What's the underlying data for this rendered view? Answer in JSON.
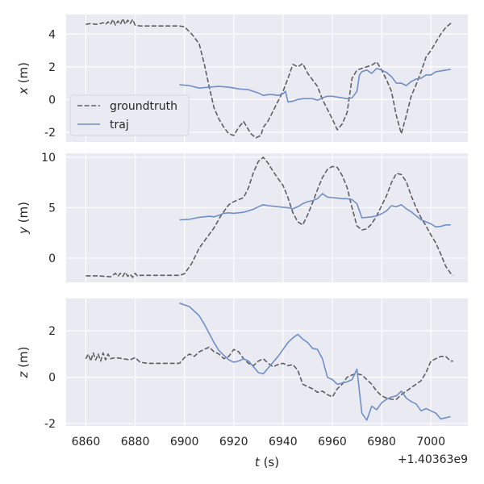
{
  "chart_data": [
    {
      "type": "line",
      "ylabel_var": "x",
      "ylabel_unit": " (m)",
      "ylim": [
        -2.6,
        5.2
      ],
      "yticks": [
        -2,
        0,
        2,
        4
      ],
      "xlim": [
        6852,
        7015
      ],
      "xticks": [
        6860,
        6880,
        6900,
        6920,
        6940,
        6960,
        6980,
        7000
      ],
      "grid": true,
      "legend": {
        "placement": "left",
        "entries": [
          "groundtruth",
          "traj"
        ]
      },
      "series": [
        {
          "name": "groundtruth",
          "style": "dashed",
          "color": "#5f5f5f",
          "x": [
            6860,
            6862,
            6864,
            6866,
            6867,
            6868,
            6869,
            6870,
            6871,
            6872,
            6873,
            6874,
            6875,
            6876,
            6877,
            6878,
            6879,
            6880,
            6882,
            6885,
            6890,
            6895,
            6898,
            6900,
            6903,
            6906,
            6908,
            6910,
            6912,
            6914,
            6916,
            6918,
            6920,
            6922,
            6924,
            6925,
            6927,
            6929,
            6931,
            6932,
            6934,
            6936,
            6938,
            6940,
            6942,
            6944,
            6946,
            6948,
            6950,
            6952,
            6954,
            6956,
            6958,
            6960,
            6962,
            6964,
            6966,
            6968,
            6970,
            6972,
            6974,
            6976,
            6978,
            6980,
            6982,
            6984,
            6986,
            6988,
            6990,
            6992,
            6994,
            6996,
            6998,
            7000,
            7002,
            7004,
            7006,
            7008,
            7009
          ],
          "y": [
            4.6,
            4.65,
            4.6,
            4.65,
            4.7,
            4.6,
            4.75,
            4.6,
            4.9,
            4.55,
            4.8,
            4.6,
            4.95,
            4.6,
            4.85,
            4.65,
            4.9,
            4.55,
            4.5,
            4.5,
            4.5,
            4.5,
            4.5,
            4.45,
            4.0,
            3.4,
            2.2,
            0.8,
            -0.5,
            -1.2,
            -1.7,
            -2.1,
            -2.2,
            -1.7,
            -1.35,
            -1.6,
            -2.1,
            -2.35,
            -2.2,
            -1.7,
            -1.3,
            -0.7,
            -0.1,
            0.5,
            1.3,
            2.15,
            2.0,
            2.2,
            1.6,
            1.2,
            0.8,
            0.0,
            -0.6,
            -1.2,
            -1.85,
            -1.5,
            -0.8,
            1.3,
            1.8,
            1.9,
            2.0,
            2.1,
            2.3,
            1.8,
            1.2,
            0.5,
            -1.0,
            -2.1,
            -1.0,
            0.2,
            0.9,
            1.7,
            2.6,
            3.0,
            3.5,
            4.0,
            4.4,
            4.65,
            4.7
          ]
        },
        {
          "name": "traj",
          "style": "solid",
          "color": "#6f8fc7",
          "x": [
            6898,
            6902,
            6906,
            6910,
            6914,
            6918,
            6922,
            6926,
            6930,
            6932,
            6934,
            6936,
            6938,
            6940,
            6941,
            6942,
            6944,
            6946,
            6948,
            6950,
            6952,
            6954,
            6956,
            6958,
            6960,
            6962,
            6964,
            6966,
            6968,
            6970,
            6971,
            6972,
            6974,
            6976,
            6978,
            6980,
            6982,
            6984,
            6986,
            6988,
            6990,
            6992,
            6994,
            6996,
            6998,
            7000,
            7002,
            7004,
            7006,
            7008
          ],
          "y": [
            0.9,
            0.85,
            0.7,
            0.75,
            0.8,
            0.75,
            0.65,
            0.6,
            0.4,
            0.25,
            0.3,
            0.3,
            0.25,
            0.35,
            0.5,
            -0.15,
            -0.1,
            0.0,
            0.05,
            0.05,
            0.05,
            -0.05,
            0.1,
            0.2,
            0.2,
            0.15,
            0.1,
            0.05,
            0.1,
            0.5,
            1.5,
            1.7,
            1.8,
            1.6,
            1.9,
            1.8,
            1.65,
            1.4,
            1.0,
            1.0,
            0.85,
            1.1,
            1.25,
            1.3,
            1.5,
            1.5,
            1.7,
            1.75,
            1.8,
            1.85
          ]
        }
      ]
    },
    {
      "type": "line",
      "ylabel_var": "y",
      "ylabel_unit": " (m)",
      "ylim": [
        -2.4,
        10.4
      ],
      "yticks": [
        0,
        5,
        10
      ],
      "xlim": [
        6852,
        7015
      ],
      "xticks": [
        6860,
        6880,
        6900,
        6920,
        6940,
        6960,
        6980,
        7000
      ],
      "grid": true,
      "series": [
        {
          "name": "groundtruth",
          "style": "dashed",
          "color": "#5f5f5f",
          "x": [
            6860,
            6865,
            6870,
            6872,
            6873,
            6874,
            6875,
            6876,
            6877,
            6878,
            6879,
            6880,
            6881,
            6882,
            6885,
            6890,
            6895,
            6898,
            6900,
            6903,
            6906,
            6909,
            6912,
            6915,
            6918,
            6920,
            6922,
            6924,
            6926,
            6928,
            6930,
            6932,
            6934,
            6936,
            6938,
            6940,
            6942,
            6944,
            6946,
            6948,
            6950,
            6952,
            6954,
            6956,
            6958,
            6960,
            6962,
            6964,
            6966,
            6968,
            6970,
            6972,
            6974,
            6976,
            6978,
            6980,
            6982,
            6984,
            6986,
            6988,
            6990,
            6992,
            6994,
            6996,
            6998,
            7000,
            7002,
            7004,
            7006,
            7008,
            7009
          ],
          "y": [
            -1.75,
            -1.75,
            -1.85,
            -1.5,
            -1.8,
            -1.5,
            -1.8,
            -1.4,
            -1.8,
            -1.6,
            -1.9,
            -1.5,
            -1.8,
            -1.7,
            -1.7,
            -1.7,
            -1.7,
            -1.7,
            -1.55,
            -0.5,
            1.0,
            2.0,
            3.0,
            4.3,
            5.3,
            5.6,
            5.8,
            6.0,
            7.0,
            8.5,
            9.6,
            10.0,
            9.4,
            8.6,
            7.9,
            7.2,
            6.0,
            4.5,
            3.6,
            3.3,
            4.3,
            5.5,
            6.8,
            8.0,
            8.8,
            9.1,
            9.0,
            8.2,
            7.0,
            5.0,
            3.2,
            2.8,
            2.9,
            3.4,
            4.2,
            5.2,
            6.2,
            7.5,
            8.4,
            8.3,
            7.6,
            6.2,
            5.0,
            4.0,
            3.2,
            2.3,
            1.5,
            0.4,
            -0.8,
            -1.5,
            -1.7
          ]
        },
        {
          "name": "traj",
          "style": "solid",
          "color": "#6f8fc7",
          "x": [
            6898,
            6902,
            6906,
            6910,
            6912,
            6914,
            6916,
            6918,
            6920,
            6922,
            6924,
            6926,
            6928,
            6930,
            6932,
            6934,
            6936,
            6938,
            6940,
            6942,
            6944,
            6946,
            6948,
            6950,
            6952,
            6954,
            6956,
            6958,
            6960,
            6962,
            6964,
            6966,
            6968,
            6970,
            6972,
            6974,
            6976,
            6978,
            6980,
            6982,
            6984,
            6986,
            6988,
            6990,
            6992,
            6994,
            6996,
            6998,
            7000,
            7002,
            7004,
            7006,
            7008
          ],
          "y": [
            3.8,
            3.85,
            4.05,
            4.15,
            4.1,
            4.25,
            4.45,
            4.5,
            4.45,
            4.5,
            4.55,
            4.7,
            4.85,
            5.1,
            5.3,
            5.2,
            5.15,
            5.1,
            5.05,
            5.0,
            4.9,
            5.1,
            5.4,
            5.6,
            5.7,
            5.9,
            6.4,
            6.05,
            6.0,
            5.95,
            5.9,
            5.9,
            5.8,
            5.4,
            4.0,
            4.05,
            4.1,
            4.2,
            4.4,
            4.7,
            5.2,
            5.1,
            5.3,
            4.9,
            4.6,
            4.2,
            3.8,
            3.6,
            3.4,
            3.1,
            3.15,
            3.3,
            3.3
          ]
        }
      ]
    },
    {
      "type": "line",
      "ylabel_var": "z",
      "ylabel_unit": " (m)",
      "ylim": [
        -2.1,
        3.4
      ],
      "yticks": [
        -2,
        0,
        2
      ],
      "xlim": [
        6852,
        7015
      ],
      "xticks": [
        6860,
        6880,
        6900,
        6920,
        6940,
        6960,
        6980,
        7000
      ],
      "xlabel_var": "t",
      "xlabel_unit": " (s)",
      "x_offset_label": "+1.40363e9",
      "grid": true,
      "series": [
        {
          "name": "groundtruth",
          "style": "dashed",
          "color": "#5f5f5f",
          "x": [
            6860,
            6861,
            6862,
            6863,
            6864,
            6865,
            6866,
            6867,
            6868,
            6869,
            6870,
            6872,
            6875,
            6878,
            6880,
            6882,
            6885,
            6890,
            6895,
            6898,
            6900,
            6902,
            6904,
            6906,
            6908,
            6910,
            6912,
            6914,
            6916,
            6918,
            6920,
            6922,
            6924,
            6926,
            6928,
            6930,
            6932,
            6934,
            6936,
            6938,
            6940,
            6942,
            6944,
            6946,
            6948,
            6950,
            6952,
            6954,
            6956,
            6958,
            6960,
            6962,
            6964,
            6966,
            6968,
            6970,
            6972,
            6974,
            6976,
            6978,
            6980,
            6982,
            6984,
            6986,
            6988,
            6990,
            6992,
            6994,
            6996,
            6998,
            7000,
            7002,
            7004,
            7006,
            7008,
            7009
          ],
          "y": [
            0.8,
            1.0,
            0.7,
            1.05,
            0.75,
            1.0,
            0.7,
            1.05,
            0.75,
            1.0,
            0.8,
            0.85,
            0.8,
            0.75,
            0.85,
            0.65,
            0.6,
            0.6,
            0.6,
            0.6,
            0.85,
            1.0,
            0.9,
            1.1,
            1.2,
            1.3,
            1.1,
            1.0,
            0.8,
            0.9,
            1.2,
            1.1,
            0.8,
            0.6,
            0.5,
            0.7,
            0.8,
            0.6,
            0.45,
            0.55,
            0.6,
            0.5,
            0.55,
            0.3,
            -0.3,
            -0.4,
            -0.5,
            -0.65,
            -0.6,
            -0.75,
            -0.85,
            -0.5,
            -0.3,
            0.0,
            0.1,
            0.15,
            0.1,
            -0.1,
            -0.3,
            -0.6,
            -0.8,
            -0.9,
            -0.95,
            -0.95,
            -0.75,
            -0.6,
            -0.45,
            -0.3,
            -0.15,
            0.2,
            0.7,
            0.8,
            0.9,
            0.9,
            0.7,
            0.7
          ]
        },
        {
          "name": "traj",
          "style": "solid",
          "color": "#6f8fc7",
          "x": [
            6898,
            6902,
            6906,
            6908,
            6910,
            6912,
            6914,
            6916,
            6918,
            6920,
            6922,
            6924,
            6926,
            6928,
            6930,
            6932,
            6934,
            6936,
            6938,
            6940,
            6942,
            6944,
            6946,
            6948,
            6950,
            6952,
            6954,
            6956,
            6958,
            6960,
            6962,
            6964,
            6966,
            6968,
            6970,
            6972,
            6974,
            6976,
            6978,
            6980,
            6982,
            6984,
            6986,
            6988,
            6990,
            6992,
            6994,
            6996,
            6998,
            7000,
            7002,
            7004,
            7006,
            7008
          ],
          "y": [
            3.2,
            3.05,
            2.65,
            2.3,
            1.9,
            1.5,
            1.15,
            0.95,
            0.75,
            0.65,
            0.7,
            0.8,
            0.7,
            0.45,
            0.2,
            0.15,
            0.4,
            0.65,
            0.9,
            1.2,
            1.5,
            1.7,
            1.85,
            1.65,
            1.5,
            1.25,
            1.2,
            0.8,
            0.0,
            -0.1,
            -0.3,
            -0.25,
            -0.2,
            -0.1,
            0.35,
            -1.55,
            -1.85,
            -1.25,
            -1.4,
            -1.1,
            -0.95,
            -0.85,
            -0.8,
            -0.6,
            -0.9,
            -1.05,
            -1.15,
            -1.45,
            -1.35,
            -1.45,
            -1.55,
            -1.8,
            -1.75,
            -1.7
          ]
        }
      ]
    }
  ]
}
